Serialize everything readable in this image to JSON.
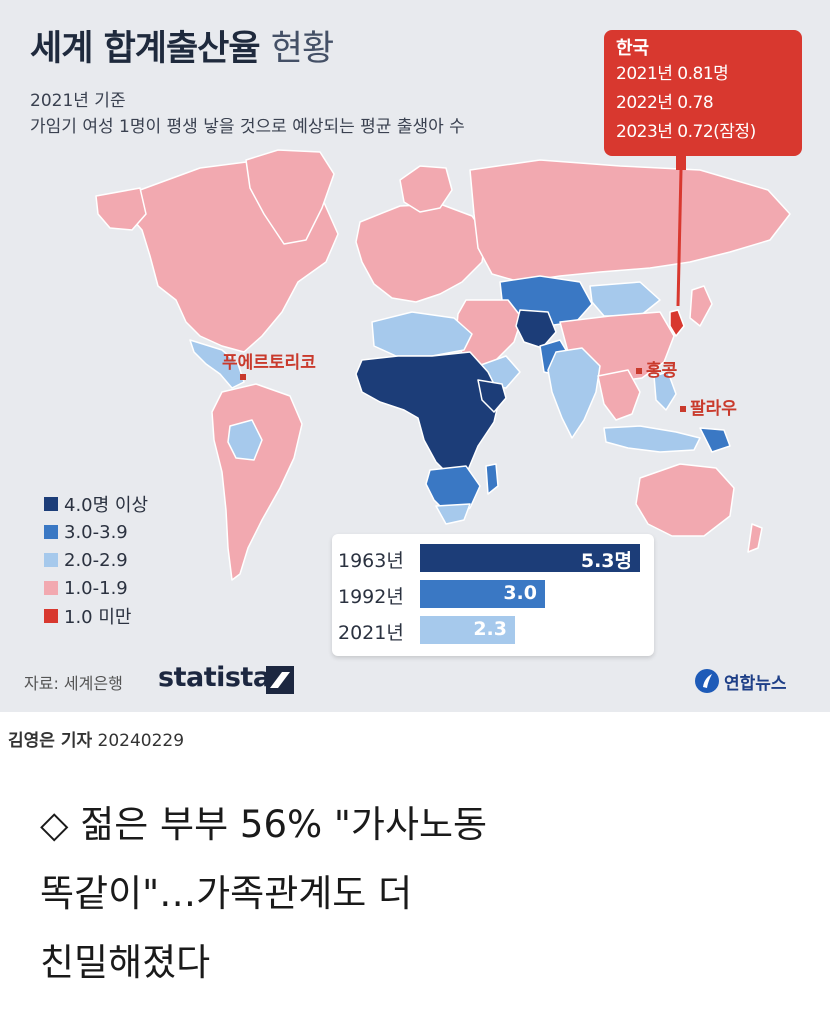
{
  "infographic": {
    "title_bold": "세계 합계출산율",
    "title_light": "현황",
    "subtitle_year": "2021년 기준",
    "subtitle_desc": "가임기 여성 1명이 평생 낳을 것으로 예상되는 평균 출생아 수",
    "callout": {
      "country": "한국",
      "lines": [
        "2021년 0.81명",
        "2022년 0.78",
        "2023년 0.72(잠정)"
      ]
    },
    "map_labels": [
      "푸에르토리코",
      "홍콩",
      "팔라우"
    ],
    "legend": [
      {
        "label": "4.0명 이상",
        "color": "#1c3d78"
      },
      {
        "label": "3.0-3.9",
        "color": "#3a78c4"
      },
      {
        "label": "2.0-2.9",
        "color": "#a6c9ec"
      },
      {
        "label": "1.0-1.9",
        "color": "#f2a9b0"
      },
      {
        "label": "1.0 미만",
        "color": "#d8382f"
      }
    ],
    "bars": {
      "max": 5.3,
      "items": [
        {
          "year": "1963년",
          "value": 5.3,
          "label": "5.3명",
          "color": "#1c3d78"
        },
        {
          "year": "1992년",
          "value": 3.0,
          "label": "3.0",
          "color": "#3a78c4"
        },
        {
          "year": "2021년",
          "value": 2.3,
          "label": "2.3",
          "color": "#a6c9ec"
        }
      ]
    },
    "source": "자료: 세계은행",
    "statista": "statista",
    "agency": "연합뉴스"
  },
  "byline": {
    "reporter": "김영은 기자",
    "date": "20240229"
  },
  "headline": {
    "lines": [
      "◇ 젊은 부부 56% \"가사노동",
      "똑같이\"…가족관계도 더",
      "친밀해졌다"
    ]
  }
}
